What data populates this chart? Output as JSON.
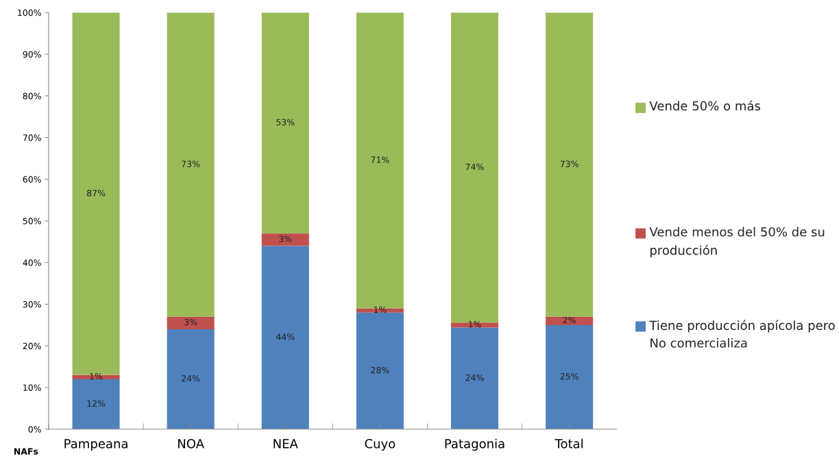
{
  "chart_data": {
    "type": "bar",
    "stacked": true,
    "xlabel": "NAFs",
    "categories": [
      "Pampeana",
      "NOA",
      "NEA",
      "Cuyo",
      "Patagonia",
      "Total"
    ],
    "series": [
      {
        "name": "Tiene producción apícola pero No comercializa",
        "color": "#4f81bd",
        "values": [
          12,
          24,
          44,
          28,
          24.4,
          25
        ],
        "value_labels": [
          "12%",
          "24%",
          "44%",
          "28%",
          "24%",
          "25%"
        ]
      },
      {
        "name": "Vende menos del 50% de su producción",
        "color": "#c0504d",
        "values": [
          1,
          3,
          3,
          1,
          1.2,
          2
        ],
        "value_labels": [
          "1%",
          "3%",
          "3%",
          "1%",
          "1%",
          "2%"
        ]
      },
      {
        "name": "Vende 50% o más",
        "color": "#9bbb59",
        "values": [
          87,
          73,
          53,
          71,
          74.4,
          73
        ],
        "value_labels": [
          "87%",
          "73%",
          "53%",
          "71%",
          "74%",
          "73%"
        ]
      }
    ],
    "ylim": [
      0,
      100
    ],
    "yticks": [
      {
        "value": 0,
        "label": "0%"
      },
      {
        "value": 10,
        "label": "10%"
      },
      {
        "value": 20,
        "label": "20%"
      },
      {
        "value": 30,
        "label": "30%"
      },
      {
        "value": 40,
        "label": "40%"
      },
      {
        "value": 50,
        "label": "50%"
      },
      {
        "value": 60,
        "label": "60%"
      },
      {
        "value": 70,
        "label": "70%"
      },
      {
        "value": 80,
        "label": "80%"
      },
      {
        "value": 90,
        "label": "90%"
      },
      {
        "value": 100,
        "label": "100%"
      }
    ],
    "grid": false,
    "legend": "right"
  }
}
